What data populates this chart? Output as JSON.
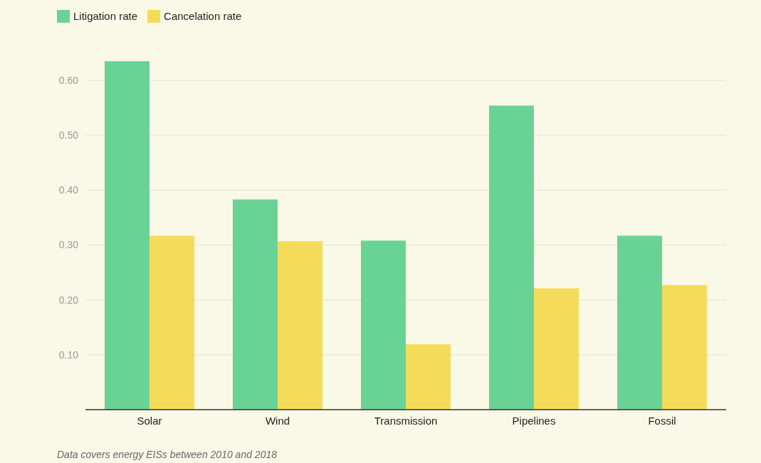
{
  "chart_data": {
    "type": "bar",
    "categories": [
      "Solar",
      "Wind",
      "Transmission",
      "Pipelines",
      "Fossil"
    ],
    "series": [
      {
        "name": "Litigation rate",
        "color": "#69d396",
        "values": [
          0.635,
          0.383,
          0.308,
          0.554,
          0.317
        ]
      },
      {
        "name": "Cancelation rate",
        "color": "#f4dc5a",
        "values": [
          0.317,
          0.307,
          0.119,
          0.221,
          0.227
        ]
      }
    ],
    "yticks": [
      {
        "value": 0.1,
        "label": "0.10"
      },
      {
        "value": 0.2,
        "label": "0.20"
      },
      {
        "value": 0.3,
        "label": "0.30"
      },
      {
        "value": 0.4,
        "label": "0.40"
      },
      {
        "value": 0.5,
        "label": "0.50"
      },
      {
        "value": 0.6,
        "label": "0.60"
      }
    ],
    "ylim": [
      0,
      0.635
    ],
    "grid": "y",
    "legend": "top left",
    "annotations": [
      "Data covers energy EISs between 2010 and 2018"
    ]
  }
}
